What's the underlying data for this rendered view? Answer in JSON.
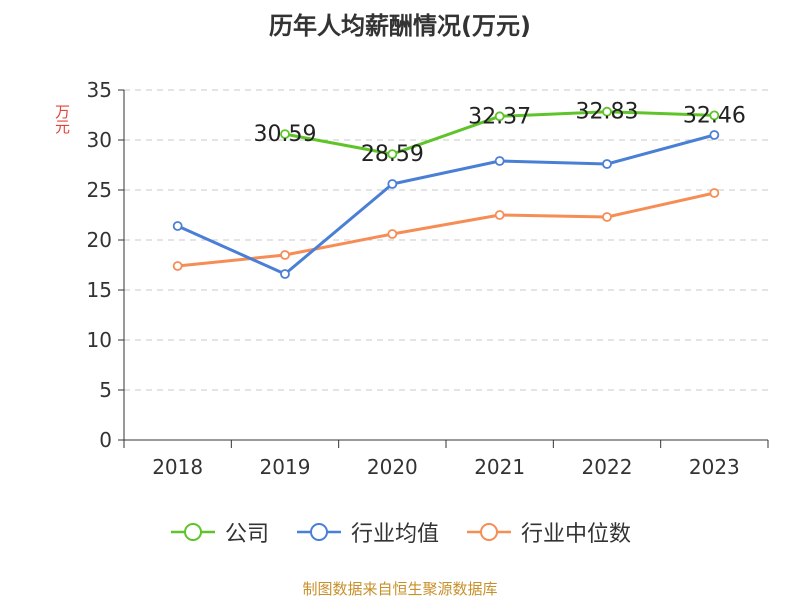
{
  "chart_data": {
    "type": "line",
    "title": "历年人均薪酬情况(万元)",
    "ylabel": "万元",
    "xlabel": "",
    "categories": [
      "2018",
      "2019",
      "2020",
      "2021",
      "2022",
      "2023"
    ],
    "ylim": [
      0,
      35
    ],
    "yticks": [
      0,
      5,
      10,
      15,
      20,
      25,
      30,
      35
    ],
    "grid": true,
    "legend_position": "bottom",
    "series": [
      {
        "name": "公司",
        "color": "#5ec42a",
        "values": [
          null,
          30.59,
          28.59,
          32.37,
          32.83,
          32.46
        ],
        "labels": [
          "",
          "30.59",
          "28.59",
          "32.37",
          "32.83",
          "32.46"
        ]
      },
      {
        "name": "行业均值",
        "color": "#4a7fd6",
        "values": [
          21.4,
          16.6,
          25.6,
          27.9,
          27.6,
          30.5
        ]
      },
      {
        "name": "行业中位数",
        "color": "#f68d55",
        "values": [
          17.4,
          18.5,
          20.6,
          22.5,
          22.3,
          24.7
        ]
      }
    ]
  },
  "footer": {
    "source": "制图数据来自恒生聚源数据库"
  }
}
